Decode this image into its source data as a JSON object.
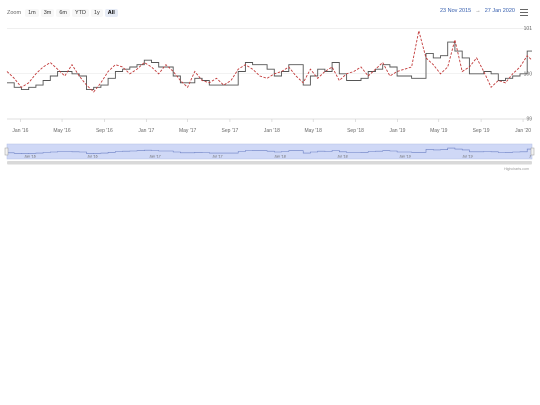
{
  "range_selector": {
    "zoom_label": "Zoom",
    "buttons": [
      {
        "label": "1m",
        "active": false
      },
      {
        "label": "3m",
        "active": false
      },
      {
        "label": "6m",
        "active": false
      },
      {
        "label": "YTD",
        "active": false
      },
      {
        "label": "1y",
        "active": false
      },
      {
        "label": "All",
        "active": true
      }
    ]
  },
  "date_input": {
    "from": "23 Nov 2015",
    "arrow": "→",
    "to": "27 Jan 2020"
  },
  "menu": {
    "icon": "hamburger-menu-icon"
  },
  "credits": "Highcharts.com",
  "colors": {
    "series_solid": "#555555",
    "series_dashed": "#c23a3a",
    "navigator_fill": "#cfd8f6",
    "navigator_line": "#6b7fc4",
    "scrollbar": "#d9d9d9",
    "axis": "#cccccc"
  },
  "chart_data": {
    "type": "line",
    "title": "",
    "xlabel": "",
    "ylabel": "",
    "ylim": [
      99,
      101.1
    ],
    "x_tick_labels": [
      "Jan '16",
      "May '16",
      "Sep '16",
      "Jan '17",
      "May '17",
      "Sep '17",
      "Jan '18",
      "May '18",
      "Sep '18",
      "Jan '19",
      "May '19",
      "Sep '19",
      "Jan '20"
    ],
    "y_tick_labels": [
      "99",
      "100",
      "101"
    ],
    "navigator_tick_labels": [
      "Jan '16",
      "Jul '16",
      "Jan '17",
      "Jul '17",
      "Jan '18",
      "Jul '18",
      "Jan '19",
      "Jul '19",
      "J"
    ],
    "x": [
      "2015-11-23",
      "2015-12-14",
      "2016-01-04",
      "2016-01-25",
      "2016-02-15",
      "2016-03-07",
      "2016-03-28",
      "2016-04-18",
      "2016-05-09",
      "2016-05-30",
      "2016-06-20",
      "2016-07-11",
      "2016-08-01",
      "2016-08-22",
      "2016-09-12",
      "2016-10-03",
      "2016-10-24",
      "2016-11-14",
      "2016-12-05",
      "2016-12-26",
      "2017-01-16",
      "2017-02-06",
      "2017-02-27",
      "2017-03-20",
      "2017-04-10",
      "2017-05-01",
      "2017-05-22",
      "2017-06-12",
      "2017-07-03",
      "2017-07-24",
      "2017-08-14",
      "2017-09-04",
      "2017-09-25",
      "2017-10-16",
      "2017-11-06",
      "2017-11-27",
      "2017-12-18",
      "2018-01-08",
      "2018-01-29",
      "2018-02-19",
      "2018-03-12",
      "2018-04-02",
      "2018-04-23",
      "2018-05-14",
      "2018-06-04",
      "2018-06-25",
      "2018-07-16",
      "2018-08-06",
      "2018-08-27",
      "2018-09-17",
      "2018-10-08",
      "2018-10-29",
      "2018-11-19",
      "2018-12-10",
      "2018-12-31",
      "2019-01-21",
      "2019-02-11",
      "2019-03-04",
      "2019-03-25",
      "2019-04-15",
      "2019-05-06",
      "2019-05-27",
      "2019-06-17",
      "2019-07-08",
      "2019-07-29",
      "2019-08-19",
      "2019-09-09",
      "2019-09-30",
      "2019-10-21",
      "2019-11-11",
      "2019-12-02",
      "2019-12-23",
      "2020-01-13",
      "2020-01-27"
    ],
    "series": [
      {
        "values": [
          99.8,
          99.7,
          99.65,
          99.7,
          99.75,
          99.85,
          99.95,
          100.05,
          100.05,
          100.0,
          99.95,
          99.65,
          99.7,
          99.75,
          99.9,
          100.05,
          100.1,
          100.15,
          100.2,
          100.3,
          100.25,
          100.15,
          100.15,
          99.95,
          99.8,
          99.8,
          99.9,
          99.85,
          99.75,
          99.75,
          99.75,
          99.75,
          100.05,
          100.25,
          100.2,
          100.2,
          100.1,
          99.95,
          100.05,
          100.2,
          100.2,
          99.75,
          99.95,
          100.1,
          100.05,
          100.25,
          100.0,
          99.85,
          99.85,
          99.9,
          100.05,
          100.1,
          100.2,
          100.15,
          99.95,
          99.95,
          99.9,
          99.9,
          100.45,
          100.35,
          100.4,
          100.7,
          100.5,
          100.35,
          100.0,
          100.0,
          100.05,
          100.0,
          99.85,
          99.9,
          99.95,
          100.0,
          100.5,
          100.5
        ]
      },
      {
        "values": [
          100.05,
          99.9,
          99.7,
          99.8,
          100.0,
          100.15,
          100.25,
          100.1,
          99.95,
          100.2,
          99.95,
          99.75,
          99.6,
          99.8,
          100.05,
          100.2,
          100.15,
          100.0,
          100.1,
          100.25,
          100.15,
          100.0,
          100.2,
          100.05,
          99.85,
          99.7,
          100.05,
          99.85,
          99.8,
          99.9,
          99.75,
          99.85,
          100.1,
          100.2,
          100.1,
          99.95,
          99.9,
          100.0,
          100.05,
          100.15,
          99.95,
          99.8,
          100.1,
          99.9,
          100.05,
          100.15,
          99.85,
          100.0,
          100.05,
          100.15,
          99.95,
          100.1,
          100.25,
          99.95,
          100.05,
          100.1,
          100.15,
          100.95,
          100.35,
          100.2,
          100.0,
          100.15,
          100.75,
          100.05,
          100.15,
          100.35,
          100.05,
          99.7,
          99.85,
          99.8,
          100.0,
          100.15,
          100.4,
          100.3
        ]
      }
    ],
    "grid": true,
    "legend": "none",
    "navigator": true,
    "scrollbar": true
  }
}
